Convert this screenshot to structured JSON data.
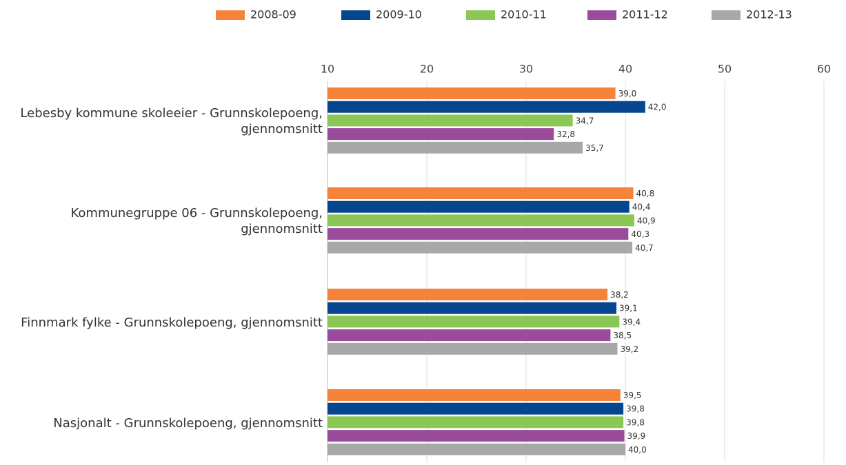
{
  "chart_data": {
    "type": "barh",
    "categories": [
      "Lebesby kommune skoleeier - Grunnskolepoeng, gjennomsnitt",
      "Kommunegruppe 06 - Grunnskolepoeng, gjennomsnitt",
      "Finnmark fylke - Grunnskolepoeng, gjennomsnitt",
      "Nasjonalt - Grunnskolepoeng, gjennomsnitt"
    ],
    "series": [
      {
        "name": "2008-09",
        "color": "#f5833a",
        "values": [
          39.0,
          40.8,
          38.2,
          39.5
        ],
        "value_labels": [
          "39,0",
          "40,8",
          "38,2",
          "39,5"
        ]
      },
      {
        "name": "2009-10",
        "color": "#05468f",
        "values": [
          42.0,
          40.4,
          39.1,
          39.8
        ],
        "value_labels": [
          "42,0",
          "40,4",
          "39,1",
          "39,8"
        ]
      },
      {
        "name": "2010-11",
        "color": "#8bc755",
        "values": [
          34.7,
          40.9,
          39.4,
          39.8
        ],
        "value_labels": [
          "34,7",
          "40,9",
          "39,4",
          "39,8"
        ]
      },
      {
        "name": "2011-12",
        "color": "#9b4b9c",
        "values": [
          32.8,
          40.3,
          38.5,
          39.9
        ],
        "value_labels": [
          "32,8",
          "40,3",
          "38,5",
          "39,9"
        ]
      },
      {
        "name": "2012-13",
        "color": "#a8a8a8",
        "values": [
          35.7,
          40.7,
          39.2,
          40.0
        ],
        "value_labels": [
          "35,7",
          "40,7",
          "39,2",
          "40,0"
        ]
      }
    ],
    "xlim": [
      10,
      60
    ],
    "xticks": [
      10,
      20,
      30,
      40,
      50,
      60
    ],
    "grid": true,
    "legend": "top"
  }
}
